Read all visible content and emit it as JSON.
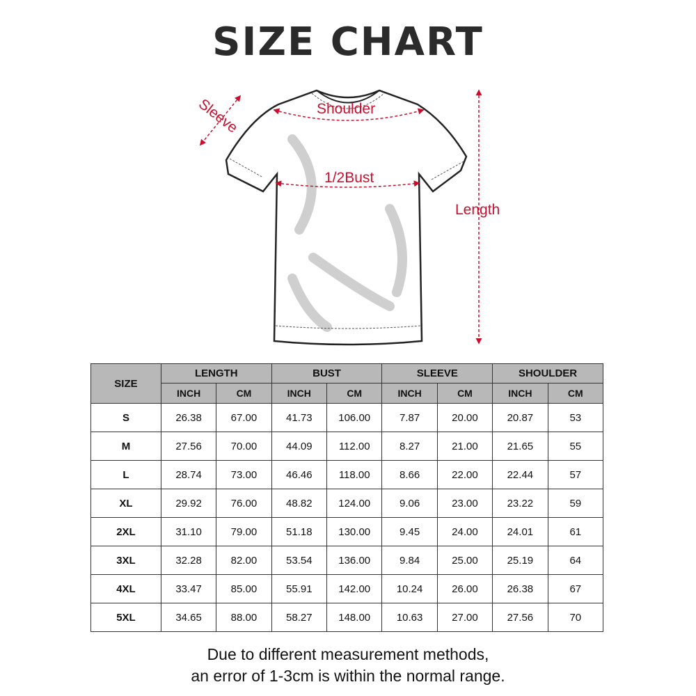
{
  "title": "SIZE CHART",
  "diagram": {
    "labels": {
      "sleeve": "Sleeve",
      "shoulder": "Shoulder",
      "bust": "1/2Bust",
      "length": "Length"
    },
    "arrow_color": "#c8102e"
  },
  "table": {
    "size_header": "SIZE",
    "groups": [
      "LENGTH",
      "BUST",
      "SLEEVE",
      "SHOULDER"
    ],
    "units": [
      "INCH",
      "CM"
    ],
    "rows": [
      [
        "S",
        "26.38",
        "67.00",
        "41.73",
        "106.00",
        "7.87",
        "20.00",
        "20.87",
        "53"
      ],
      [
        "M",
        "27.56",
        "70.00",
        "44.09",
        "112.00",
        "8.27",
        "21.00",
        "21.65",
        "55"
      ],
      [
        "L",
        "28.74",
        "73.00",
        "46.46",
        "118.00",
        "8.66",
        "22.00",
        "22.44",
        "57"
      ],
      [
        "XL",
        "29.92",
        "76.00",
        "48.82",
        "124.00",
        "9.06",
        "23.00",
        "23.22",
        "59"
      ],
      [
        "2XL",
        "31.10",
        "79.00",
        "51.18",
        "130.00",
        "9.45",
        "24.00",
        "24.01",
        "61"
      ],
      [
        "3XL",
        "32.28",
        "82.00",
        "53.54",
        "136.00",
        "9.84",
        "25.00",
        "25.19",
        "64"
      ],
      [
        "4XL",
        "33.47",
        "85.00",
        "55.91",
        "142.00",
        "10.24",
        "26.00",
        "26.38",
        "67"
      ],
      [
        "5XL",
        "34.65",
        "88.00",
        "58.27",
        "148.00",
        "10.63",
        "27.00",
        "27.56",
        "70"
      ]
    ]
  },
  "note": [
    "Due to different measurement methods,",
    "an error of 1-3cm is within the normal range."
  ]
}
